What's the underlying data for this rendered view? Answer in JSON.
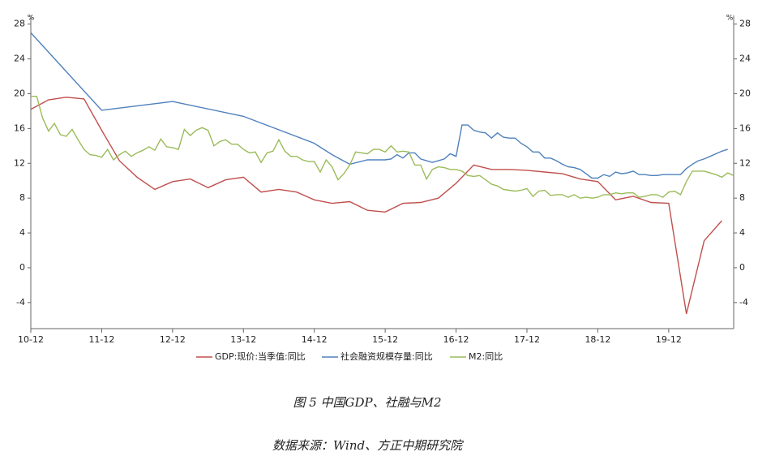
{
  "chart_data": {
    "type": "line",
    "ylabel": "%",
    "y2label": "%",
    "caption": "图 5   中国GDP、社融与M2",
    "source": "数据来源：Wind、方正中期研究院",
    "xlim": [
      0,
      119
    ],
    "xticks": [
      {
        "value": 0,
        "label": "10-12"
      },
      {
        "value": 12,
        "label": "11-12"
      },
      {
        "value": 24,
        "label": "12-12"
      },
      {
        "value": 36,
        "label": "13-12"
      },
      {
        "value": 48,
        "label": "14-12"
      },
      {
        "value": 60,
        "label": "15-12"
      },
      {
        "value": 72,
        "label": "16-12"
      },
      {
        "value": 84,
        "label": "17-12"
      },
      {
        "value": 96,
        "label": "18-12"
      },
      {
        "value": 108,
        "label": "19-12"
      }
    ],
    "ylim": [
      -7,
      29
    ],
    "yticks": [
      -4,
      0,
      4,
      8,
      12,
      16,
      20,
      24,
      28
    ],
    "y2lim": [
      -7,
      29
    ],
    "y2ticks": [
      -4,
      0,
      4,
      8,
      12,
      16,
      20,
      24,
      28
    ],
    "grid": false,
    "legend": "bottom",
    "series": [
      {
        "name": "GDP:现价:当季值:同比",
        "color": "#c0504d",
        "x": [
          0,
          3,
          6,
          9,
          12,
          15,
          18,
          21,
          24,
          27,
          30,
          33,
          36,
          39,
          42,
          45,
          48,
          51,
          54,
          57,
          60,
          63,
          66,
          69,
          72,
          75,
          78,
          81,
          84,
          87,
          90,
          93,
          96,
          99,
          102,
          105,
          108,
          111,
          114,
          117
        ],
        "values": [
          18.2,
          19.3,
          19.6,
          19.4,
          15.8,
          12.3,
          10.4,
          9.0,
          9.9,
          10.2,
          9.2,
          10.1,
          10.4,
          8.7,
          9.0,
          8.7,
          7.8,
          7.4,
          7.6,
          6.6,
          6.4,
          7.4,
          7.5,
          8.0,
          9.7,
          11.8,
          11.3,
          11.3,
          11.2,
          11.0,
          10.8,
          10.2,
          9.9,
          7.8,
          8.2,
          7.5,
          7.4,
          -5.3,
          3.1,
          5.4
        ]
      },
      {
        "name": "社会融资规模存量:同比",
        "color": "#4f81bd",
        "x": [
          0,
          12,
          24,
          36,
          48,
          51,
          54,
          57,
          60,
          61,
          62,
          63,
          64,
          65,
          66,
          67,
          68,
          69,
          70,
          71,
          72,
          73,
          74,
          75,
          76,
          77,
          78,
          79,
          80,
          81,
          82,
          83,
          84,
          85,
          86,
          87,
          88,
          89,
          90,
          91,
          92,
          93,
          94,
          95,
          96,
          97,
          98,
          99,
          100,
          101,
          102,
          103,
          104,
          105,
          106,
          107,
          108,
          109,
          110,
          111,
          112,
          113,
          114,
          115,
          116,
          117,
          118
        ],
        "values": [
          27.0,
          18.1,
          19.1,
          17.4,
          14.3,
          13.0,
          11.9,
          12.4,
          12.4,
          12.5,
          13.0,
          12.6,
          13.2,
          13.2,
          12.5,
          12.3,
          12.1,
          12.3,
          12.5,
          13.1,
          12.8,
          16.4,
          16.4,
          15.8,
          15.6,
          15.5,
          14.9,
          15.5,
          15.0,
          14.9,
          14.9,
          14.3,
          13.9,
          13.3,
          13.3,
          12.6,
          12.6,
          12.3,
          11.9,
          11.6,
          11.5,
          11.3,
          10.8,
          10.3,
          10.3,
          10.7,
          10.5,
          11.0,
          10.8,
          10.9,
          11.1,
          10.7,
          10.7,
          10.6,
          10.6,
          10.7,
          10.7,
          10.7,
          10.7,
          11.4,
          11.9,
          12.3,
          12.5,
          12.8,
          13.1,
          13.4,
          13.6
        ]
      },
      {
        "name": "M2:同比",
        "color": "#9bbb59",
        "x": [
          0,
          1,
          2,
          3,
          4,
          5,
          6,
          7,
          8,
          9,
          10,
          11,
          12,
          13,
          14,
          15,
          16,
          17,
          18,
          19,
          20,
          21,
          22,
          23,
          24,
          25,
          26,
          27,
          28,
          29,
          30,
          31,
          32,
          33,
          34,
          35,
          36,
          37,
          38,
          39,
          40,
          41,
          42,
          43,
          44,
          45,
          46,
          47,
          48,
          49,
          50,
          51,
          52,
          53,
          54,
          55,
          56,
          57,
          58,
          59,
          60,
          61,
          62,
          63,
          64,
          65,
          66,
          67,
          68,
          69,
          70,
          71,
          72,
          73,
          74,
          75,
          76,
          77,
          78,
          79,
          80,
          81,
          82,
          83,
          84,
          85,
          86,
          87,
          88,
          89,
          90,
          91,
          92,
          93,
          94,
          95,
          96,
          97,
          98,
          99,
          100,
          101,
          102,
          103,
          104,
          105,
          106,
          107,
          108,
          109,
          110,
          111,
          112,
          113,
          114,
          115,
          116,
          117,
          118,
          119
        ],
        "values": [
          19.7,
          19.7,
          17.2,
          15.7,
          16.6,
          15.3,
          15.1,
          15.9,
          14.7,
          13.6,
          13.0,
          12.9,
          12.7,
          13.6,
          12.4,
          13.0,
          13.4,
          12.8,
          13.2,
          13.5,
          13.9,
          13.5,
          14.8,
          13.9,
          13.8,
          13.6,
          15.9,
          15.2,
          15.8,
          16.1,
          15.8,
          14.0,
          14.5,
          14.7,
          14.2,
          14.2,
          13.6,
          13.2,
          13.3,
          12.1,
          13.2,
          13.4,
          14.7,
          13.4,
          12.8,
          12.8,
          12.4,
          12.2,
          12.2,
          11.0,
          12.4,
          11.6,
          10.1,
          10.8,
          11.8,
          13.3,
          13.2,
          13.1,
          13.6,
          13.6,
          13.3,
          14.0,
          13.3,
          13.4,
          13.3,
          11.8,
          11.8,
          10.2,
          11.3,
          11.6,
          11.5,
          11.3,
          11.3,
          11.1,
          10.6,
          10.5,
          10.6,
          10.1,
          9.6,
          9.4,
          9.0,
          8.9,
          8.8,
          8.9,
          9.1,
          8.2,
          8.8,
          8.9,
          8.3,
          8.4,
          8.4,
          8.1,
          8.4,
          8.0,
          8.1,
          8.0,
          8.1,
          8.4,
          8.4,
          8.6,
          8.5,
          8.6,
          8.6,
          8.1,
          8.2,
          8.4,
          8.4,
          8.1,
          8.7,
          8.8,
          8.4,
          9.9,
          11.1,
          11.1,
          11.1,
          10.9,
          10.7,
          10.4,
          10.9,
          10.6
        ]
      }
    ]
  }
}
